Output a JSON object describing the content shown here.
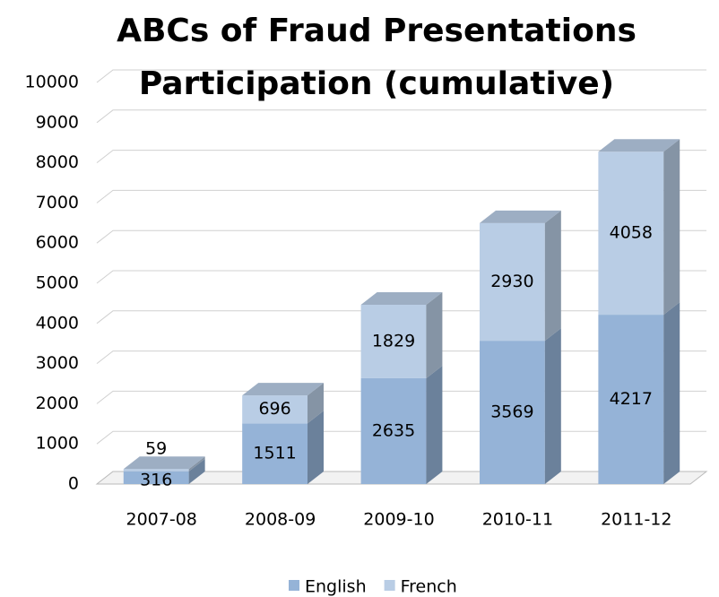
{
  "chart_data": {
    "type": "bar",
    "stacked": true,
    "title": [
      "ABCs of Fraud Presentations",
      "Participation (cumulative)"
    ],
    "categories": [
      "2007-08",
      "2008-09",
      "2009-10",
      "2010-11",
      "2011-12"
    ],
    "series": [
      {
        "name": "English",
        "color": "#95b3d7",
        "values": [
          316,
          1511,
          2635,
          3569,
          4217
        ]
      },
      {
        "name": "French",
        "color": "#b9cde5",
        "values": [
          59,
          696,
          1829,
          2930,
          4058
        ]
      }
    ],
    "ylim": [
      0,
      10000
    ],
    "yticks": [
      0,
      1000,
      2000,
      3000,
      4000,
      5000,
      6000,
      7000,
      8000,
      9000,
      10000
    ],
    "grid": true,
    "legend": "bottom"
  }
}
